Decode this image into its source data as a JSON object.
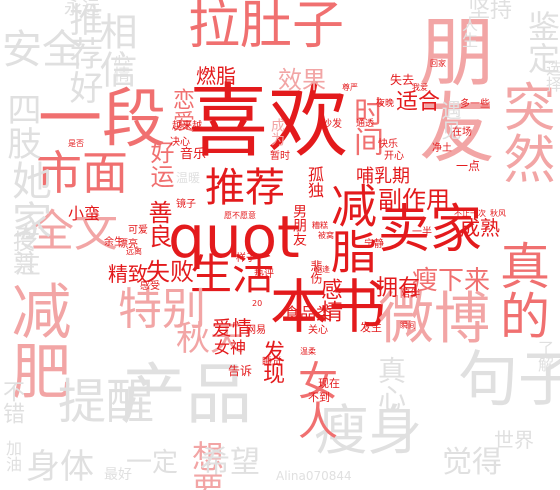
{
  "words": [
    {
      "text": "喜欢",
      "color": "#e31a1c",
      "weight": 1.0
    },
    {
      "text": "朋友",
      "color": "#f2a5a5",
      "weight": 0.95
    },
    {
      "text": "quot",
      "color": "#e31a1c",
      "weight": 0.9
    },
    {
      "text": "一段",
      "color": "#f07070",
      "weight": 0.85
    },
    {
      "text": "本书",
      "color": "#e31a1c",
      "weight": 0.85
    },
    {
      "text": "卖家",
      "color": "#e31a1c",
      "weight": 0.85
    },
    {
      "text": "减肥",
      "color": "#f2a5a5",
      "weight": 0.8
    },
    {
      "text": "产品",
      "color": "#e0e0e0",
      "weight": 0.8
    },
    {
      "text": "微博",
      "color": "#f2a5a5",
      "weight": 0.8
    },
    {
      "text": "拉肚子",
      "color": "#f07070",
      "weight": 0.75
    },
    {
      "text": "推荐",
      "color": "#e31a1c",
      "weight": 0.75
    },
    {
      "text": "减脂",
      "color": "#e31a1c",
      "weight": 0.75
    },
    {
      "text": "生活",
      "color": "#e31a1c",
      "weight": 0.7
    },
    {
      "text": "市面",
      "color": "#f07070",
      "weight": 0.7
    },
    {
      "text": "全文",
      "color": "#f2a5a5",
      "weight": 0.7
    },
    {
      "text": "特别",
      "color": "#f2a5a5",
      "weight": 0.65
    },
    {
      "text": "句子",
      "color": "#e0e0e0",
      "weight": 0.65
    },
    {
      "text": "瘦身",
      "color": "#e0e0e0",
      "weight": 0.6
    },
    {
      "text": "提醒",
      "color": "#e0e0e0",
      "weight": 0.6
    },
    {
      "text": "真的",
      "color": "#f07070",
      "weight": 0.6
    },
    {
      "text": "突然",
      "color": "#f2a5a5",
      "weight": 0.6
    },
    {
      "text": "女人",
      "color": "#f07070",
      "weight": 0.55
    },
    {
      "text": "秋天",
      "color": "#f2a5a5",
      "weight": 0.5
    },
    {
      "text": "安全",
      "color": "#e0e0e0",
      "weight": 0.5
    },
    {
      "text": "她家",
      "color": "#e0e0e0",
      "weight": 0.5
    },
    {
      "text": "身体",
      "color": "#e0e0e0",
      "weight": 0.45
    },
    {
      "text": "时间",
      "color": "#f07070",
      "weight": 0.45
    },
    {
      "text": "想要",
      "color": "#f2a5a5",
      "weight": 0.45
    },
    {
      "text": "希望",
      "color": "#e0e0e0",
      "weight": 0.45
    },
    {
      "text": "觉得",
      "color": "#e0e0e0",
      "weight": 0.45
    },
    {
      "text": "一定",
      "color": "#e0e0e0",
      "weight": 0.45
    },
    {
      "text": "四肢",
      "color": "#e0e0e0",
      "weight": 0.42
    },
    {
      "text": "真心",
      "color": "#e0e0e0",
      "weight": 0.42
    },
    {
      "text": "相信",
      "color": "#e0e0e0",
      "weight": 0.42
    },
    {
      "text": "鉴定",
      "color": "#e0e0e0",
      "weight": 0.42
    },
    {
      "text": "瘦下来",
      "color": "#f07070",
      "weight": 0.4
    },
    {
      "text": "副作用",
      "color": "#e31a1c",
      "weight": 0.4
    },
    {
      "text": "失败",
      "color": "#e31a1c",
      "weight": 0.38
    },
    {
      "text": "善良",
      "color": "#e31a1c",
      "weight": 0.38
    },
    {
      "text": "好运",
      "color": "#f07070",
      "weight": 0.36
    },
    {
      "text": "感情",
      "color": "#e31a1c",
      "weight": 0.35
    },
    {
      "text": "拥有",
      "color": "#e31a1c",
      "weight": 0.35
    },
    {
      "text": "发现",
      "color": "#e31a1c",
      "weight": 0.35
    },
    {
      "text": "爱情",
      "color": "#e31a1c",
      "weight": 0.33
    },
    {
      "text": "推荐好",
      "color": "#e0e0e0",
      "weight": 0.33
    },
    {
      "text": "效果",
      "color": "#f2a5a5",
      "weight": 0.33
    },
    {
      "text": "适合",
      "color": "#e31a1c",
      "weight": 0.32
    },
    {
      "text": "成熟",
      "color": "#e31a1c",
      "weight": 0.32
    },
    {
      "text": "精致",
      "color": "#e31a1c",
      "weight": 0.3
    },
    {
      "text": "恋爱",
      "color": "#f07070",
      "weight": 0.3
    },
    {
      "text": "燃脂",
      "color": "#e31a1c",
      "weight": 0.3
    },
    {
      "text": "哺乳期",
      "color": "#e31a1c",
      "weight": 0.3
    },
    {
      "text": "女神",
      "color": "#e31a1c",
      "weight": 0.28
    },
    {
      "text": "食品类",
      "color": "#e31a1c",
      "weight": 0.28
    },
    {
      "text": "孤独",
      "color": "#e31a1c",
      "weight": 0.26
    },
    {
      "text": "男朋友",
      "color": "#e31a1c",
      "weight": 0.26
    },
    {
      "text": "小蛮",
      "color": "#e31a1c",
      "weight": 0.26
    },
    {
      "text": "永远",
      "color": "#e0e0e0",
      "weight": 0.26
    },
    {
      "text": "音乐",
      "color": "#e31a1c",
      "weight": 0.24
    },
    {
      "text": "成为",
      "color": "#f2a5a5",
      "weight": 0.24
    },
    {
      "text": "坚持",
      "color": "#e0e0e0",
      "weight": 0.24
    },
    {
      "text": "专注",
      "color": "#e0e0e0",
      "weight": 0.24
    },
    {
      "text": "遇见",
      "color": "#e0e0e0",
      "weight": 0.24
    },
    {
      "text": "投票",
      "color": "#e0e0e0",
      "weight": 0.24
    },
    {
      "text": "心情",
      "color": "#e0e0e0",
      "weight": 0.24
    },
    {
      "text": "不错",
      "color": "#e0e0e0",
      "weight": 0.22
    },
    {
      "text": "温暖",
      "color": "#e0e0e0",
      "weight": 0.22
    },
    {
      "text": "人生",
      "color": "#e0e0e0",
      "weight": 0.22
    },
    {
      "text": "选择",
      "color": "#e0e0e0",
      "weight": 0.22
    },
    {
      "text": "加油",
      "color": "#e0e0e0",
      "weight": 0.22
    },
    {
      "text": "最好",
      "color": "#e0e0e0",
      "weight": 0.22
    },
    {
      "text": "了解",
      "color": "#e0e0e0",
      "weight": 0.22
    },
    {
      "text": "世界",
      "color": "#e0e0e0",
      "weight": 0.22
    },
    {
      "text": "告诉",
      "color": "#e31a1c",
      "weight": 0.2
    },
    {
      "text": "现在",
      "color": "#e31a1c",
      "weight": 0.18
    },
    {
      "text": "不到",
      "color": "#e31a1c",
      "weight": 0.18
    },
    {
      "text": "发生",
      "color": "#e31a1c",
      "weight": 0.18
    },
    {
      "text": "关心",
      "color": "#e31a1c",
      "weight": 0.16
    },
    {
      "text": "悲伤",
      "color": "#e31a1c",
      "weight": 0.16
    },
    {
      "text": "陪伴",
      "color": "#e31a1c",
      "weight": 0.16
    },
    {
      "text": "开心",
      "color": "#e31a1c",
      "weight": 0.16
    },
    {
      "text": "快乐",
      "color": "#e31a1c",
      "weight": 0.16
    },
    {
      "text": "失去",
      "color": "#e31a1c",
      "weight": 0.16
    },
    {
      "text": "一点",
      "color": "#e31a1c",
      "weight": 0.16
    },
    {
      "text": "多一些",
      "color": "#e31a1c",
      "weight": 0.14
    },
    {
      "text": "在场",
      "color": "#e31a1c",
      "weight": 0.14
    },
    {
      "text": "净土",
      "color": "#e31a1c",
      "weight": 0.14
    },
    {
      "text": "一半",
      "color": "#e31a1c",
      "weight": 0.14
    },
    {
      "text": "宁静",
      "color": "#e31a1c",
      "weight": 0.14
    },
    {
      "text": "热评",
      "color": "#e31a1c",
      "weight": 0.14
    },
    {
      "text": "样子",
      "color": "#e31a1c",
      "weight": 0.14
    },
    {
      "text": "睡觉",
      "color": "#e31a1c",
      "weight": 0.14
    },
    {
      "text": "网易",
      "color": "#e31a1c",
      "weight": 0.14
    },
    {
      "text": "感受",
      "color": "#e31a1c",
      "weight": 0.14
    },
    {
      "text": "可爱",
      "color": "#e31a1c",
      "weight": 0.14
    },
    {
      "text": "漂亮",
      "color": "#e31a1c",
      "weight": 0.14
    },
    {
      "text": "余生",
      "color": "#e31a1c",
      "weight": 0.14
    },
    {
      "text": "远离",
      "color": "#e31a1c",
      "weight": 0.14
    },
    {
      "text": "越来越",
      "color": "#e31a1c",
      "weight": 0.14
    },
    {
      "text": "决心",
      "color": "#e31a1c",
      "weight": 0.14
    },
    {
      "text": "镜子",
      "color": "#e31a1c",
      "weight": 0.14
    },
    {
      "text": "沙发",
      "color": "#e31a1c",
      "weight": 0.14
    },
    {
      "text": "暂时",
      "color": "#e31a1c",
      "weight": 0.14
    },
    {
      "text": "夜晚",
      "color": "#e31a1c",
      "weight": 0.14
    },
    {
      "text": "通透",
      "color": "#e31a1c",
      "weight": 0.14
    },
    {
      "text": "秋风",
      "color": "#e31a1c",
      "weight": 0.12
    },
    {
      "text": "不止一次",
      "color": "#e31a1c",
      "weight": 0.12
    },
    {
      "text": "被窝",
      "color": "#e31a1c",
      "weight": 0.12
    },
    {
      "text": "糟糕",
      "color": "#e31a1c",
      "weight": 0.12
    },
    {
      "text": "愿不愿意",
      "color": "#e31a1c",
      "weight": 0.12
    },
    {
      "text": "是否",
      "color": "#e31a1c",
      "weight": 0.12
    },
    {
      "text": "尊严",
      "color": "#e31a1c",
      "weight": 0.12
    },
    {
      "text": "瞬间",
      "color": "#e31a1c",
      "weight": 0.12
    },
    {
      "text": "相逢",
      "color": "#e31a1c",
      "weight": 0.12
    },
    {
      "text": "温柔",
      "color": "#e31a1c",
      "weight": 0.12
    },
    {
      "text": "我爱",
      "color": "#e31a1c",
      "weight": 0.12
    },
    {
      "text": "回家",
      "color": "#e31a1c",
      "weight": 0.12
    },
    {
      "text": "20",
      "color": "#e31a1c",
      "weight": 0.12
    },
    {
      "text": "Alina070844",
      "color": "#e0e0e0",
      "weight": 0.12
    }
  ]
}
